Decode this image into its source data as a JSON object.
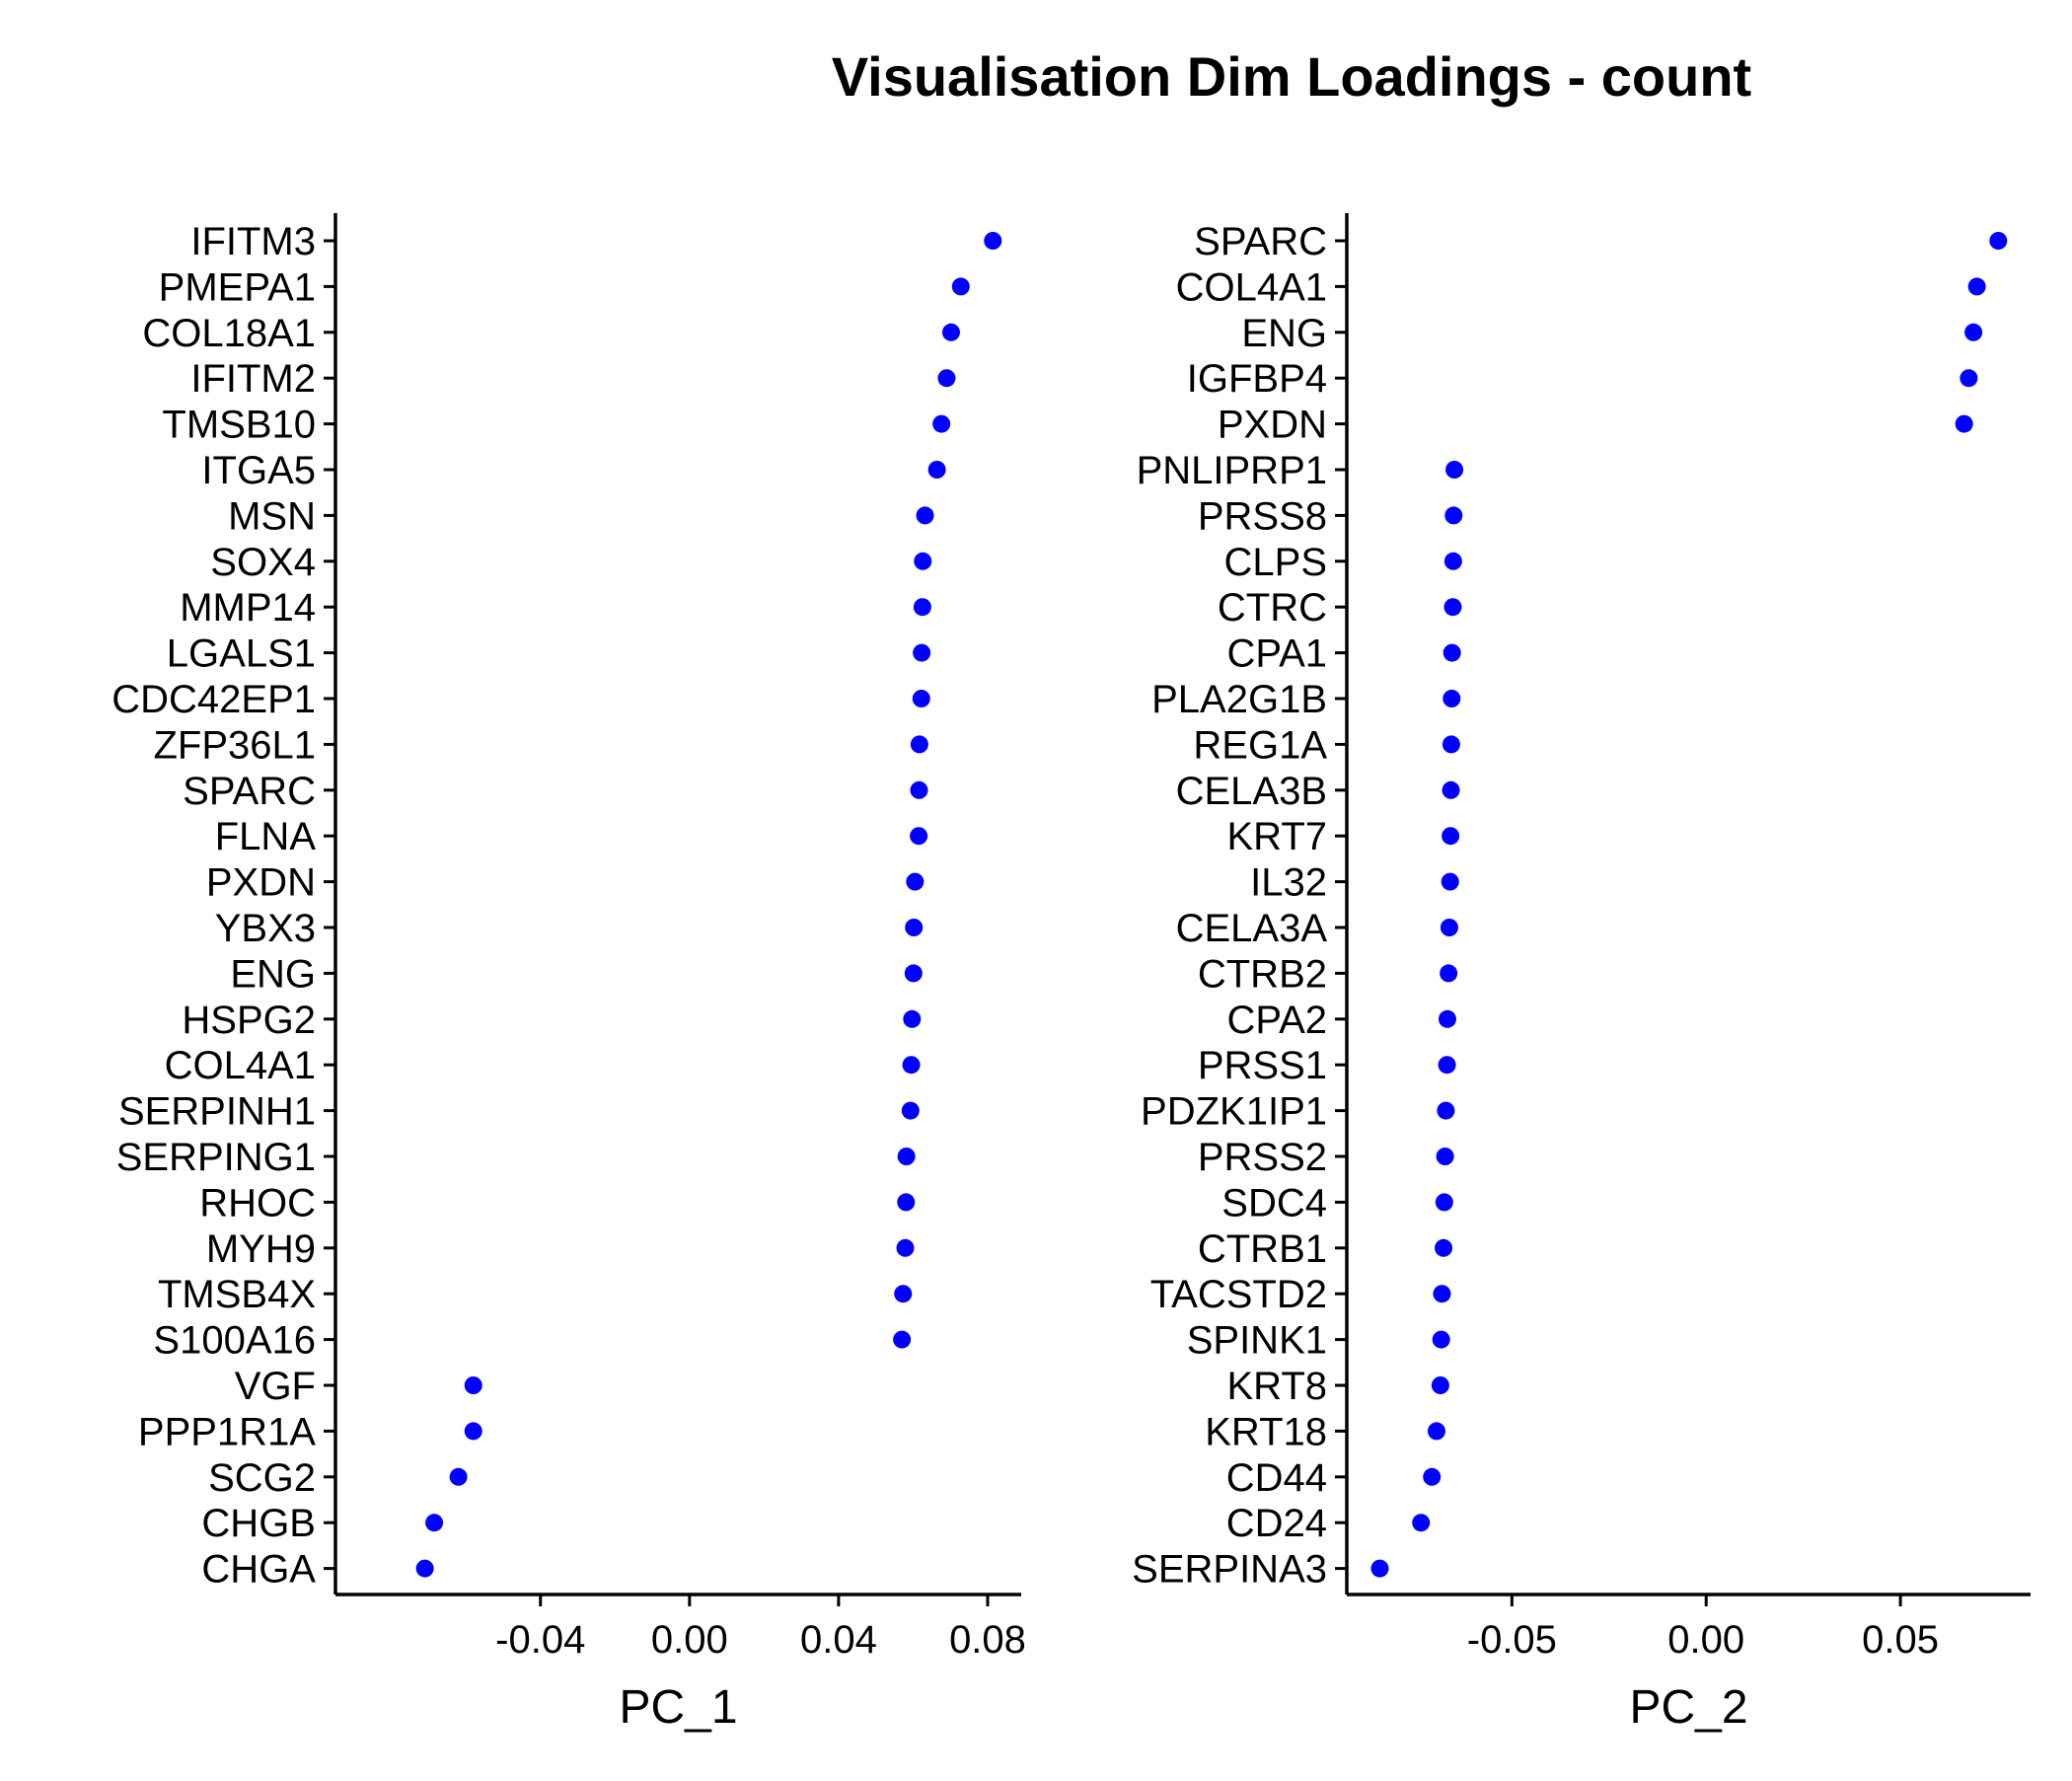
{
  "title": "Visualisation Dim Loadings - count",
  "colors": {
    "point": "#0000ff",
    "axis": "#000000",
    "text": "#000000"
  },
  "chart_data": [
    {
      "type": "scatter",
      "xlabel": "PC_1",
      "xlim": [
        -0.095,
        0.089
      ],
      "xticks": [
        -0.04,
        0.0,
        0.04,
        0.08
      ],
      "xtick_labels": [
        "-0.04",
        "0.00",
        "0.04",
        "0.08"
      ],
      "grid": false,
      "genes": [
        "IFITM3",
        "PMEPA1",
        "COL18A1",
        "IFITM2",
        "TMSB10",
        "ITGA5",
        "MSN",
        "SOX4",
        "MMP14",
        "LGALS1",
        "CDC42EP1",
        "ZFP36L1",
        "SPARC",
        "FLNA",
        "PXDN",
        "YBX3",
        "ENG",
        "HSPG2",
        "COL4A1",
        "SERPINH1",
        "SERPING1",
        "RHOC",
        "MYH9",
        "TMSB4X",
        "S100A16",
        "VGF",
        "PPP1R1A",
        "SCG2",
        "CHGB",
        "CHGA"
      ],
      "values": [
        0.0814,
        0.0728,
        0.0702,
        0.069,
        0.0676,
        0.0664,
        0.0632,
        0.0626,
        0.0625,
        0.0623,
        0.0622,
        0.0617,
        0.0616,
        0.0615,
        0.0605,
        0.0602,
        0.0601,
        0.0597,
        0.0595,
        0.0593,
        0.0582,
        0.0581,
        0.0579,
        0.0573,
        0.057,
        -0.058,
        -0.058,
        -0.062,
        -0.0685,
        -0.071
      ]
    },
    {
      "type": "scatter",
      "xlabel": "PC_2",
      "xlim": [
        -0.0925,
        0.0835
      ],
      "xticks": [
        -0.05,
        0.0,
        0.05
      ],
      "xtick_labels": [
        "-0.05",
        "0.00",
        "0.05"
      ],
      "grid": false,
      "genes": [
        "SPARC",
        "COL4A1",
        "ENG",
        "IGFBP4",
        "PXDN",
        "PNLIPRP1",
        "PRSS8",
        "CLPS",
        "CTRC",
        "CPA1",
        "PLA2G1B",
        "REG1A",
        "CELA3B",
        "KRT7",
        "IL32",
        "CELA3A",
        "CTRB2",
        "CPA2",
        "PRSS1",
        "PDZK1IP1",
        "PRSS2",
        "SDC4",
        "CTRB1",
        "TACSTD2",
        "SPINK1",
        "KRT8",
        "KRT18",
        "CD44",
        "CD24",
        "SERPINA3"
      ],
      "values": [
        0.0752,
        0.0697,
        0.0688,
        0.0676,
        0.0664,
        -0.0648,
        -0.065,
        -0.0651,
        -0.0652,
        -0.0654,
        -0.0655,
        -0.0656,
        -0.0657,
        -0.0658,
        -0.0659,
        -0.0661,
        -0.0663,
        -0.0666,
        -0.0667,
        -0.067,
        -0.0672,
        -0.0674,
        -0.0676,
        -0.068,
        -0.0682,
        -0.0684,
        -0.0694,
        -0.0706,
        -0.0734,
        -0.084
      ]
    }
  ]
}
